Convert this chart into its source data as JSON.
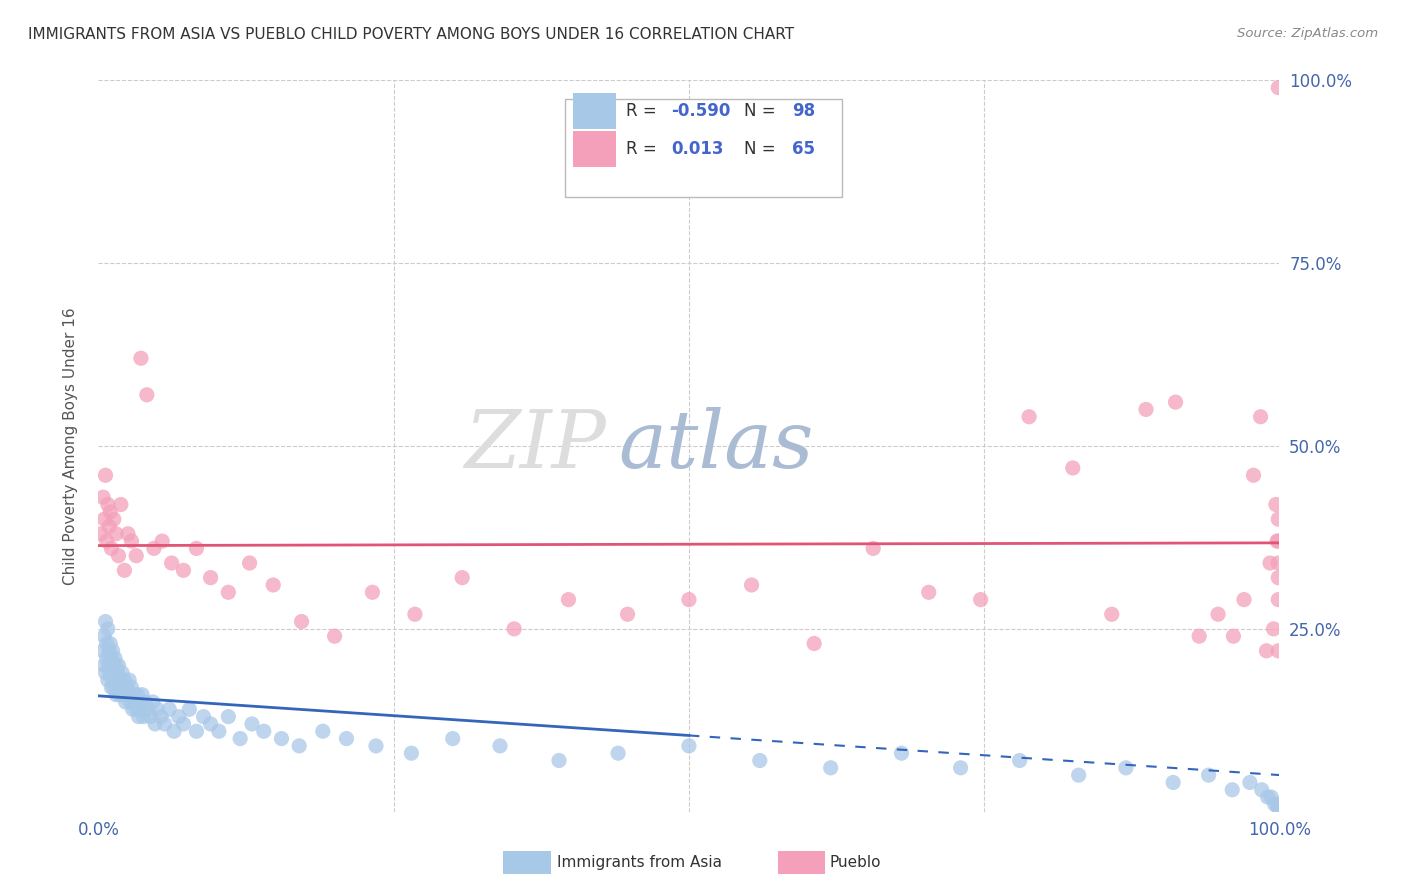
{
  "title": "IMMIGRANTS FROM ASIA VS PUEBLO CHILD POVERTY AMONG BOYS UNDER 16 CORRELATION CHART",
  "source": "Source: ZipAtlas.com",
  "ylabel": "Child Poverty Among Boys Under 16",
  "legend_label1": "Immigrants from Asia",
  "legend_label2": "Pueblo",
  "R1": -0.59,
  "N1": 98,
  "R2": 0.013,
  "N2": 65,
  "color_blue": "#A8C8E8",
  "color_pink": "#F4A0BA",
  "color_blue_line": "#3366BB",
  "color_pink_line": "#E05575",
  "watermark_zip_color": "#DDDDDD",
  "watermark_atlas_color": "#BBCCEE",
  "background": "#FFFFFF",
  "blue_x": [
    0.004,
    0.005,
    0.005,
    0.006,
    0.006,
    0.007,
    0.007,
    0.008,
    0.008,
    0.009,
    0.009,
    0.01,
    0.01,
    0.011,
    0.011,
    0.012,
    0.012,
    0.013,
    0.013,
    0.014,
    0.014,
    0.015,
    0.015,
    0.016,
    0.016,
    0.017,
    0.017,
    0.018,
    0.018,
    0.019,
    0.02,
    0.021,
    0.022,
    0.023,
    0.024,
    0.025,
    0.026,
    0.027,
    0.028,
    0.029,
    0.03,
    0.031,
    0.032,
    0.033,
    0.034,
    0.035,
    0.036,
    0.037,
    0.038,
    0.04,
    0.042,
    0.044,
    0.046,
    0.048,
    0.05,
    0.053,
    0.056,
    0.06,
    0.064,
    0.068,
    0.072,
    0.077,
    0.083,
    0.089,
    0.095,
    0.102,
    0.11,
    0.12,
    0.13,
    0.14,
    0.155,
    0.17,
    0.19,
    0.21,
    0.235,
    0.265,
    0.3,
    0.34,
    0.39,
    0.44,
    0.5,
    0.56,
    0.62,
    0.68,
    0.73,
    0.78,
    0.83,
    0.87,
    0.91,
    0.94,
    0.96,
    0.975,
    0.985,
    0.99,
    0.993,
    0.996,
    0.998,
    0.999
  ],
  "blue_y": [
    0.22,
    0.24,
    0.2,
    0.26,
    0.19,
    0.23,
    0.21,
    0.25,
    0.18,
    0.22,
    0.2,
    0.23,
    0.19,
    0.21,
    0.17,
    0.22,
    0.18,
    0.2,
    0.17,
    0.21,
    0.19,
    0.2,
    0.16,
    0.19,
    0.18,
    0.17,
    0.2,
    0.16,
    0.18,
    0.17,
    0.19,
    0.16,
    0.18,
    0.15,
    0.17,
    0.16,
    0.18,
    0.15,
    0.17,
    0.14,
    0.16,
    0.15,
    0.14,
    0.16,
    0.13,
    0.15,
    0.14,
    0.16,
    0.13,
    0.15,
    0.14,
    0.13,
    0.15,
    0.12,
    0.14,
    0.13,
    0.12,
    0.14,
    0.11,
    0.13,
    0.12,
    0.14,
    0.11,
    0.13,
    0.12,
    0.11,
    0.13,
    0.1,
    0.12,
    0.11,
    0.1,
    0.09,
    0.11,
    0.1,
    0.09,
    0.08,
    0.1,
    0.09,
    0.07,
    0.08,
    0.09,
    0.07,
    0.06,
    0.08,
    0.06,
    0.07,
    0.05,
    0.06,
    0.04,
    0.05,
    0.03,
    0.04,
    0.03,
    0.02,
    0.02,
    0.01,
    0.01,
    0.005
  ],
  "pink_x": [
    0.002,
    0.004,
    0.005,
    0.006,
    0.007,
    0.008,
    0.009,
    0.01,
    0.011,
    0.013,
    0.015,
    0.017,
    0.019,
    0.022,
    0.025,
    0.028,
    0.032,
    0.036,
    0.041,
    0.047,
    0.054,
    0.062,
    0.072,
    0.083,
    0.095,
    0.11,
    0.128,
    0.148,
    0.172,
    0.2,
    0.232,
    0.268,
    0.308,
    0.352,
    0.398,
    0.448,
    0.5,
    0.553,
    0.606,
    0.656,
    0.703,
    0.747,
    0.788,
    0.825,
    0.858,
    0.887,
    0.912,
    0.932,
    0.948,
    0.961,
    0.97,
    0.978,
    0.984,
    0.989,
    0.992,
    0.995,
    0.997,
    0.998,
    0.999,
    0.999,
    0.999,
    0.999,
    0.999,
    0.999,
    0.999
  ],
  "pink_y": [
    0.38,
    0.43,
    0.4,
    0.46,
    0.37,
    0.42,
    0.39,
    0.41,
    0.36,
    0.4,
    0.38,
    0.35,
    0.42,
    0.33,
    0.38,
    0.37,
    0.35,
    0.62,
    0.57,
    0.36,
    0.37,
    0.34,
    0.33,
    0.36,
    0.32,
    0.3,
    0.34,
    0.31,
    0.26,
    0.24,
    0.3,
    0.27,
    0.32,
    0.25,
    0.29,
    0.27,
    0.29,
    0.31,
    0.23,
    0.36,
    0.3,
    0.29,
    0.54,
    0.47,
    0.27,
    0.55,
    0.56,
    0.24,
    0.27,
    0.24,
    0.29,
    0.46,
    0.54,
    0.22,
    0.34,
    0.25,
    0.42,
    0.37,
    0.37,
    0.32,
    0.29,
    0.4,
    0.22,
    0.34,
    0.99
  ]
}
